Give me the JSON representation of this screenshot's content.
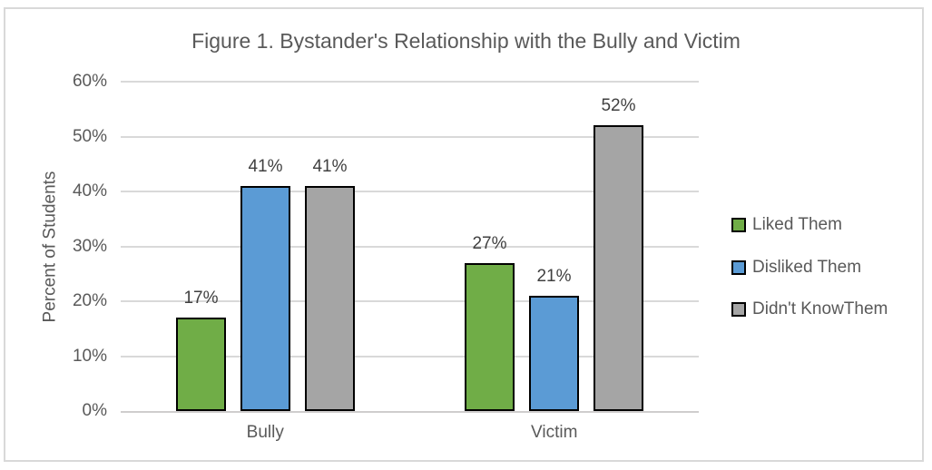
{
  "chart": {
    "title": "Figure 1. Bystander's Relationship with the Bully and Victim",
    "y_axis_title": "Percent of Students"
  },
  "chart_data": {
    "type": "bar",
    "title": "Figure 1. Bystander's Relationship with the Bully and Victim",
    "xlabel": "",
    "ylabel": "Percent of Students",
    "categories": [
      "Bully",
      "Victim"
    ],
    "series": [
      {
        "name": "Liked Them",
        "color": "#70AD47",
        "values": [
          17,
          27
        ],
        "labels": [
          "17%",
          "27%"
        ]
      },
      {
        "name": "Disliked Them",
        "color": "#5B9BD5",
        "values": [
          41,
          21
        ],
        "labels": [
          "41%",
          "21%"
        ]
      },
      {
        "name": "Didn't KnowThem",
        "color": "#A5A5A5",
        "values": [
          41,
          52
        ],
        "labels": [
          "41%",
          "52%"
        ]
      }
    ],
    "ylim": [
      0,
      60
    ],
    "ytick_step": 10,
    "ytick_labels": [
      "0%",
      "10%",
      "20%",
      "30%",
      "40%",
      "50%",
      "60%"
    ],
    "grid": true,
    "legend_position": "right",
    "style": {
      "bar_border_color": "#000000",
      "gridline_color": "#D9D9D9",
      "axis_line_color": "#CFCDCD",
      "text_color": "#595959",
      "data_label_color": "#404040",
      "frame_border_color": "#D9D9D9",
      "background": "#FFFFFF"
    }
  }
}
